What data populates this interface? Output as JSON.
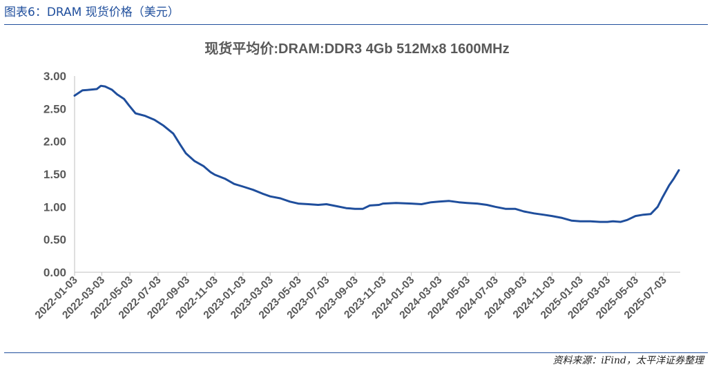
{
  "figure": {
    "caption": "图表6：DRAM 现货价格（美元）",
    "source": "资料来源：iFind，太平洋证券整理",
    "line_color": "#1f4e9c",
    "rule_color": "#1f4e9c"
  },
  "chart_data": {
    "type": "line",
    "title": "现货平均价:DRAM:DDR3 4Gb 512Mx8 1600MHz",
    "xlabel": "",
    "ylabel": "",
    "ylim": [
      0,
      3
    ],
    "yticks": [
      "0.00",
      "0.50",
      "1.00",
      "1.50",
      "2.00",
      "2.50",
      "3.00"
    ],
    "xlim": [
      "2022-01-03",
      "2025-08-08"
    ],
    "xticks": [
      "2022-01-03",
      "2022-03-03",
      "2022-05-03",
      "2022-07-03",
      "2022-09-03",
      "2022-11-03",
      "2023-01-03",
      "2023-03-03",
      "2023-05-03",
      "2023-07-03",
      "2023-09-03",
      "2023-11-03",
      "2024-01-03",
      "2024-03-03",
      "2024-05-03",
      "2024-07-03",
      "2024-09-03",
      "2024-11-03",
      "2025-01-03",
      "2025-03-03",
      "2025-05-03",
      "2025-07-03"
    ],
    "grid": false,
    "legend": "none",
    "series": [
      {
        "x": [
          "2022-01-03",
          "2022-01-20",
          "2022-02-05",
          "2022-02-20",
          "2022-03-01",
          "2022-03-10",
          "2022-03-25",
          "2022-04-05",
          "2022-04-20",
          "2022-05-01",
          "2022-05-15",
          "2022-06-05",
          "2022-06-25",
          "2022-07-15",
          "2022-08-05",
          "2022-08-20",
          "2022-09-01",
          "2022-09-20",
          "2022-10-10",
          "2022-10-25",
          "2022-11-03",
          "2022-11-25",
          "2022-12-15",
          "2023-01-03",
          "2023-01-25",
          "2023-02-15",
          "2023-03-03",
          "2023-03-25",
          "2023-04-15",
          "2023-05-03",
          "2023-05-25",
          "2023-06-15",
          "2023-07-03",
          "2023-07-25",
          "2023-08-15",
          "2023-09-03",
          "2023-09-20",
          "2023-10-05",
          "2023-10-25",
          "2023-11-03",
          "2023-12-01",
          "2024-01-03",
          "2024-01-25",
          "2024-02-15",
          "2024-03-03",
          "2024-03-25",
          "2024-04-15",
          "2024-05-03",
          "2024-05-25",
          "2024-06-15",
          "2024-07-03",
          "2024-07-25",
          "2024-08-15",
          "2024-09-03",
          "2024-09-25",
          "2024-10-15",
          "2024-11-03",
          "2024-11-25",
          "2024-12-15",
          "2025-01-03",
          "2025-01-25",
          "2025-02-15",
          "2025-03-03",
          "2025-03-15",
          "2025-04-01",
          "2025-04-15",
          "2025-05-03",
          "2025-05-20",
          "2025-06-05",
          "2025-06-20",
          "2025-07-01",
          "2025-07-15",
          "2025-07-25",
          "2025-08-05"
        ],
        "values": [
          2.7,
          2.78,
          2.79,
          2.8,
          2.85,
          2.84,
          2.79,
          2.72,
          2.65,
          2.55,
          2.43,
          2.39,
          2.33,
          2.24,
          2.12,
          1.95,
          1.82,
          1.7,
          1.62,
          1.53,
          1.49,
          1.43,
          1.35,
          1.31,
          1.26,
          1.2,
          1.16,
          1.13,
          1.08,
          1.05,
          1.04,
          1.03,
          1.04,
          1.01,
          0.98,
          0.97,
          0.97,
          1.02,
          1.03,
          1.05,
          1.06,
          1.05,
          1.04,
          1.07,
          1.08,
          1.09,
          1.07,
          1.06,
          1.05,
          1.03,
          1.0,
          0.97,
          0.97,
          0.93,
          0.9,
          0.88,
          0.86,
          0.83,
          0.79,
          0.78,
          0.78,
          0.77,
          0.77,
          0.78,
          0.77,
          0.8,
          0.86,
          0.88,
          0.89,
          1.0,
          1.15,
          1.33,
          1.43,
          1.56
        ]
      }
    ]
  }
}
